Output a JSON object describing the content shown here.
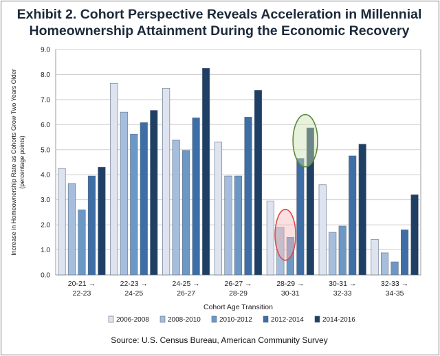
{
  "title_line1": "Exhibit 2. Cohort Perspective Reveals Acceleration in Millennial",
  "title_line2": "Homeownership Attainment During the Economic Recovery",
  "source": "Source: U.S. Census Bureau, American Community Survey",
  "chart_data": {
    "type": "bar",
    "title": "Exhibit 2. Cohort Perspective Reveals Acceleration in Millennial Homeownership Attainment During the Economic Recovery",
    "xlabel": "Cohort Age Transition",
    "ylabel": "Increase in Homeownership Rate as Cohorts Grow Two Years Older (percentage points)",
    "ylabel_lines": [
      "Increase in Homeownership Rate as Cohorts Grow Two Years Older",
      "(percentage points)"
    ],
    "ylim": [
      0,
      9
    ],
    "yticks": [
      "0.0",
      "1.0",
      "2.0",
      "3.0",
      "4.0",
      "5.0",
      "6.0",
      "7.0",
      "8.0",
      "9.0"
    ],
    "categories": [
      [
        "20-21 →",
        "22-23"
      ],
      [
        "22-23 →",
        "24-25"
      ],
      [
        "24-25 →",
        "26-27"
      ],
      [
        "26-27 →",
        "28-29"
      ],
      [
        "28-29 →",
        "30-31"
      ],
      [
        "30-31 →",
        "32-33"
      ],
      [
        "32-33 →",
        "34-35"
      ]
    ],
    "series": [
      {
        "name": "2006-2008",
        "color": "#dde3ef",
        "values": [
          4.25,
          7.65,
          7.45,
          5.3,
          2.95,
          3.6,
          1.42
        ]
      },
      {
        "name": "2008-2010",
        "color": "#a6bedd",
        "values": [
          3.65,
          6.5,
          5.38,
          3.95,
          1.9,
          1.7,
          0.88
        ]
      },
      {
        "name": "2010-2012",
        "color": "#6c98c6",
        "values": [
          2.6,
          5.62,
          4.97,
          3.95,
          1.5,
          1.95,
          0.52
        ]
      },
      {
        "name": "2012-2014",
        "color": "#3d6ea6",
        "values": [
          3.95,
          6.08,
          6.27,
          6.3,
          4.65,
          4.75,
          1.8
        ]
      },
      {
        "name": "2014-2016",
        "color": "#1f3f65",
        "values": [
          4.3,
          6.57,
          8.25,
          7.37,
          5.87,
          5.22,
          3.2
        ]
      }
    ],
    "grid": true,
    "legend": "bottom",
    "annotations": [
      {
        "shape": "ellipse",
        "color": "#d94a4a",
        "fill": "#f2b7b7",
        "marks": "28-29 → 30-31 values 2008-2010 and 2010-2012"
      },
      {
        "shape": "ellipse",
        "color": "#5a8a3a",
        "fill": "#c9e0b0",
        "marks": "28-29 → 30-31 values 2012-2014 and 2014-2016"
      }
    ]
  }
}
